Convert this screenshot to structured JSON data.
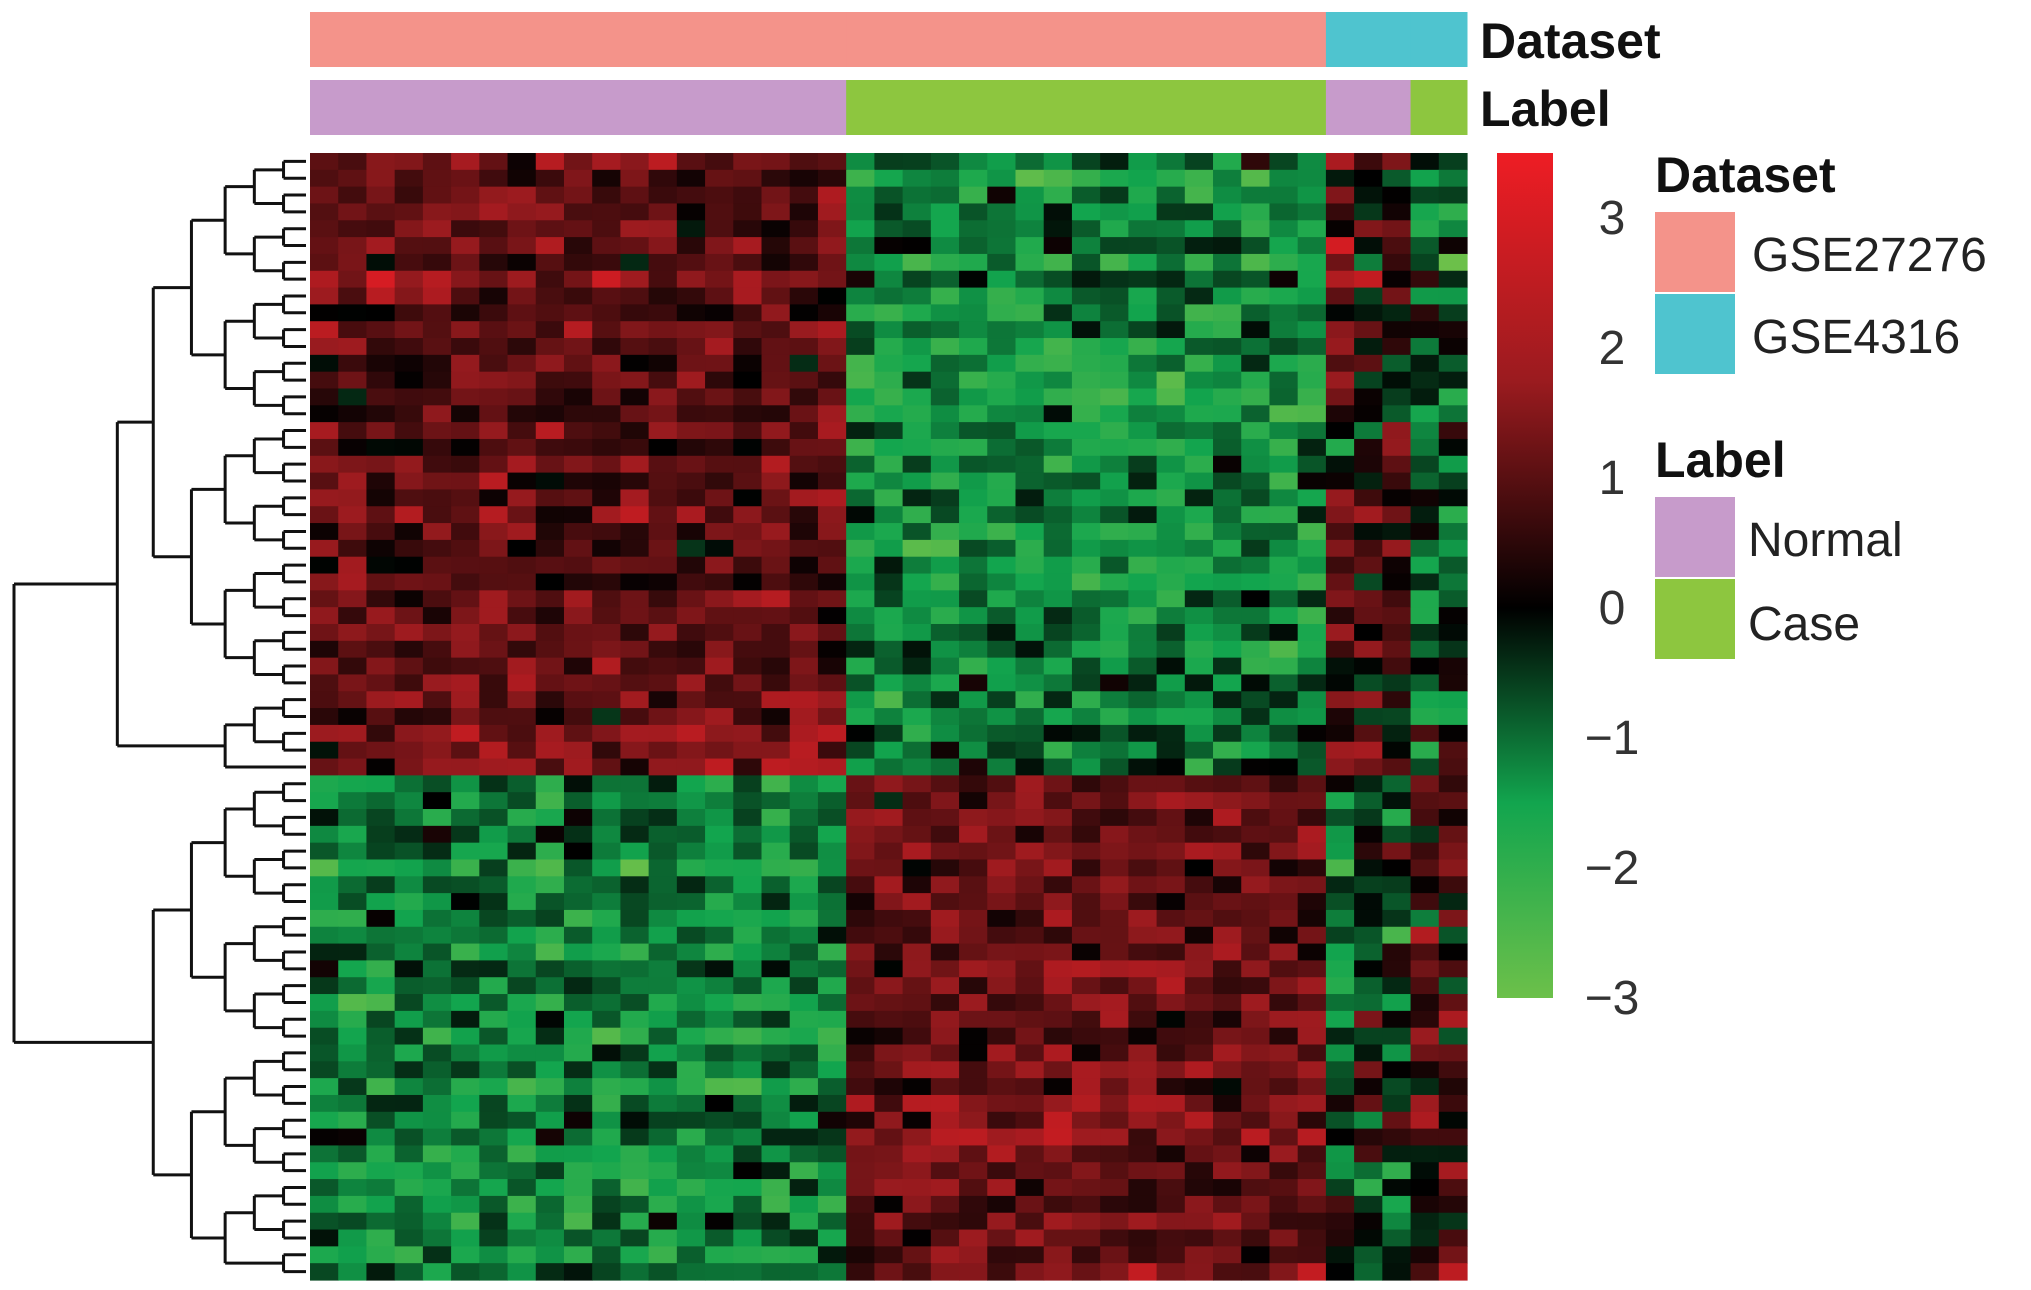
{
  "chart_data": {
    "type": "heatmap",
    "title": "",
    "n_rows": 67,
    "samples": {
      "groups": [
        {
          "dataset": "GSE27276",
          "label": "Normal",
          "count": 19
        },
        {
          "dataset": "GSE27276",
          "label": "Case",
          "count": 17
        },
        {
          "dataset": "GSE4316",
          "label": "Normal",
          "count": 3
        },
        {
          "dataset": "GSE4316",
          "label": "Case",
          "count": 2
        }
      ]
    },
    "row_clusters": [
      {
        "rows": 37,
        "pattern": "up_in_normal"
      },
      {
        "rows": 30,
        "pattern": "up_in_case"
      }
    ],
    "annotations": [
      {
        "title": "Dataset",
        "levels": [
          {
            "name": "GSE27276",
            "color": "#f4938a"
          },
          {
            "name": "GSE4316",
            "color": "#4fc4cf"
          }
        ]
      },
      {
        "title": "Label",
        "levels": [
          {
            "name": "Normal",
            "color": "#c79bcb"
          },
          {
            "name": "Case",
            "color": "#8dc63f"
          }
        ]
      }
    ],
    "color_scale": {
      "min": -3,
      "max": 3.5,
      "ticks": [
        "3",
        "2",
        "1",
        "0",
        "−1",
        "−2",
        "−3"
      ],
      "tick_values": [
        3,
        2,
        1,
        0,
        -1,
        -2,
        -3
      ],
      "stops": [
        {
          "value": -3,
          "color": "#6cc04a"
        },
        {
          "value": -1.5,
          "color": "#12a54e"
        },
        {
          "value": 0,
          "color": "#000000"
        },
        {
          "value": 1.75,
          "color": "#9b1b1f"
        },
        {
          "value": 3.5,
          "color": "#ee1d24"
        }
      ]
    },
    "dendrogram": "rows"
  }
}
